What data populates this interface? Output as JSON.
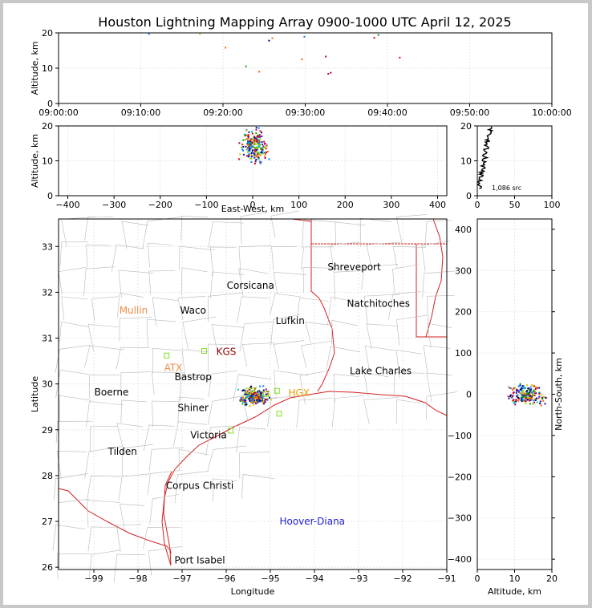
{
  "chart_data": [
    {
      "type": "scatter",
      "panel": "altitude-time",
      "title": "Houston Lightning Mapping Array 0900-1000 UTC April 12, 2025",
      "ylabel": "Altitude, km",
      "x_tick_labels": [
        "09:00:00",
        "09:10:00",
        "09:20:00",
        "09:30:00",
        "09:40:00",
        "09:50:00",
        "10:00:00"
      ],
      "xlim_minutes": [
        0,
        60
      ],
      "ylim": [
        0,
        20
      ],
      "y_ticks": [
        0,
        10,
        20
      ],
      "grid": true,
      "points": [
        [
          20.3,
          15.8
        ],
        [
          22.8,
          10.5
        ],
        [
          24.4,
          9.0
        ],
        [
          25.6,
          17.8
        ],
        [
          26.0,
          18.5
        ],
        [
          29.6,
          12.5
        ],
        [
          29.9,
          18.9
        ],
        [
          32.5,
          13.3
        ],
        [
          32.8,
          8.4
        ],
        [
          33.1,
          8.7
        ],
        [
          38.4,
          18.6
        ],
        [
          38.9,
          19.4
        ],
        [
          41.5,
          13.0
        ],
        [
          11.0,
          19.7
        ],
        [
          17.2,
          19.7
        ]
      ]
    },
    {
      "type": "scatter",
      "panel": "altitude-east-west",
      "xlabel": "East-West, km",
      "ylabel": "Altitude, km",
      "xlim": [
        -420,
        420
      ],
      "ylim": [
        0,
        20
      ],
      "x_ticks": [
        -400,
        -300,
        -200,
        -100,
        0,
        100,
        200,
        300,
        400
      ],
      "y_ticks": [
        0,
        10,
        20
      ],
      "grid": true
    },
    {
      "type": "line",
      "panel": "altitude-histogram",
      "annotation": "1,086 src",
      "xlim": [
        0,
        100
      ],
      "ylim": [
        0,
        20
      ],
      "x_ticks": [
        0,
        50,
        100
      ],
      "y_ticks": [
        0,
        10,
        20
      ],
      "profile": [
        [
          0.5,
          2
        ],
        [
          1,
          3
        ],
        [
          2,
          4
        ],
        [
          4,
          5
        ],
        [
          5,
          6
        ],
        [
          6,
          7
        ],
        [
          7,
          8
        ],
        [
          8,
          9
        ],
        [
          10,
          10
        ],
        [
          11,
          11
        ],
        [
          12,
          12
        ],
        [
          16,
          13
        ],
        [
          14,
          14
        ],
        [
          15,
          15
        ],
        [
          17,
          16
        ],
        [
          18,
          17
        ],
        [
          19,
          18
        ],
        [
          17,
          19
        ],
        [
          15,
          19.8
        ]
      ]
    },
    {
      "type": "map",
      "panel": "plan-view",
      "xlabel": "Longitude",
      "ylabel": "Latitude",
      "xlim": [
        -99.8,
        -91
      ],
      "ylim": [
        25.95,
        33.6
      ],
      "x_ticks": [
        -99,
        -98,
        -97,
        -96,
        -95,
        -94,
        -93,
        -92,
        -91
      ],
      "y_ticks": [
        26,
        27,
        28,
        29,
        30,
        31,
        32,
        33
      ],
      "grid": true,
      "cities": [
        {
          "name": "Shreveport",
          "lon": -93.1,
          "lat": 32.55,
          "color": "#000000"
        },
        {
          "name": "Corsicana",
          "lon": -95.45,
          "lat": 32.15,
          "color": "#000000"
        },
        {
          "name": "Natchitoches",
          "lon": -92.55,
          "lat": 31.75,
          "color": "#000000"
        },
        {
          "name": "Mullin",
          "lon": -98.1,
          "lat": 31.6,
          "color": "#f08c4a"
        },
        {
          "name": "Waco",
          "lon": -96.75,
          "lat": 31.6,
          "color": "#000000"
        },
        {
          "name": "Lufkin",
          "lon": -94.55,
          "lat": 31.38,
          "color": "#000000"
        },
        {
          "name": "KGS",
          "lon": -96.0,
          "lat": 30.7,
          "color": "#8b0000"
        },
        {
          "name": "ATX",
          "lon": -97.2,
          "lat": 30.35,
          "color": "#f08c4a"
        },
        {
          "name": "Bastrop",
          "lon": -96.75,
          "lat": 30.15,
          "color": "#000000"
        },
        {
          "name": "Lake Charles",
          "lon": -92.5,
          "lat": 30.28,
          "color": "#000000"
        },
        {
          "name": "Boerne",
          "lon": -98.6,
          "lat": 29.82,
          "color": "#000000"
        },
        {
          "name": "HGX",
          "lon": -94.35,
          "lat": 29.8,
          "color": "#f0a000"
        },
        {
          "name": "Shiner",
          "lon": -96.75,
          "lat": 29.48,
          "color": "#000000"
        },
        {
          "name": "Victoria",
          "lon": -96.4,
          "lat": 28.88,
          "color": "#000000"
        },
        {
          "name": "Tilden",
          "lon": -98.35,
          "lat": 28.52,
          "color": "#000000"
        },
        {
          "name": "Corpus Christi",
          "lon": -96.6,
          "lat": 27.78,
          "color": "#000000"
        },
        {
          "name": "Hoover-Diana",
          "lon": -94.05,
          "lat": 27.0,
          "color": "#2020d0"
        },
        {
          "name": "Port Isabel",
          "lon": -96.6,
          "lat": 26.15,
          "color": "#000000"
        }
      ],
      "stations": [
        [
          -97.35,
          30.62
        ],
        [
          -96.5,
          30.72
        ],
        [
          -95.1,
          29.78
        ],
        [
          -94.85,
          29.85
        ],
        [
          -94.8,
          29.35
        ],
        [
          -95.9,
          28.98
        ],
        [
          -95.5,
          29.85
        ]
      ]
    },
    {
      "type": "scatter",
      "panel": "north-south-altitude",
      "xlabel": "Altitude, km",
      "ylabel": "North-South, km",
      "xlim": [
        0,
        20
      ],
      "ylim": [
        -425,
        425
      ],
      "x_ticks": [
        0,
        10,
        20
      ],
      "y_ticks": [
        -400,
        -300,
        -200,
        -100,
        0,
        100,
        200,
        300,
        400
      ],
      "grid": true
    }
  ],
  "colors": {
    "state_line": "#d42020",
    "county_line": "#b8b8b8",
    "grid": "#e6e6e6",
    "frame": "#000000",
    "background": "#c8c8c8",
    "station": "#80e020",
    "histogram": "#000000"
  },
  "palette": [
    "#1010c0",
    "#0080ff",
    "#00c0c0",
    "#00a000",
    "#80d000",
    "#e0c000",
    "#ff6000",
    "#e00000",
    "#a00060",
    "#000080"
  ]
}
